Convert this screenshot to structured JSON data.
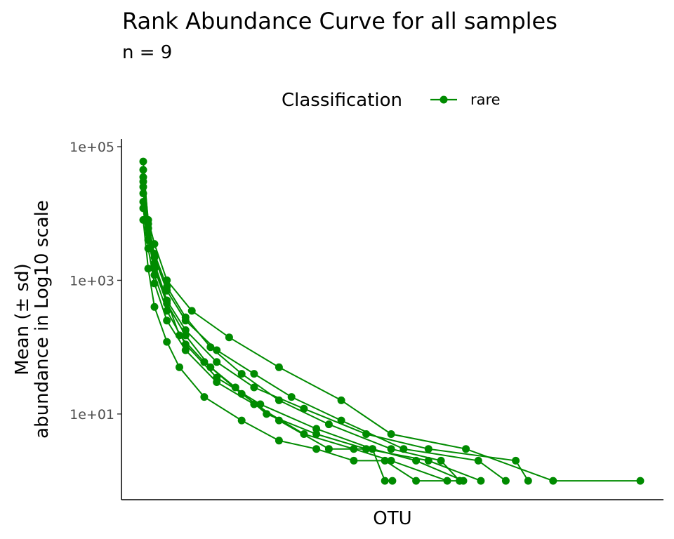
{
  "chart_data": {
    "type": "line",
    "title": "Rank Abundance Curve for all samples",
    "subtitle": "n =  9",
    "xlabel": "OTU",
    "ylabel_line1": "Mean (± sd)",
    "ylabel_line2": "abundance in Log10 scale",
    "y_scale": "log10",
    "ylim": [
      0.75,
      100000
    ],
    "y_ticks": [
      {
        "value": 100000,
        "label": "1e+05"
      },
      {
        "value": 1000,
        "label": "1e+03"
      },
      {
        "value": 10,
        "label": "1e+01"
      }
    ],
    "x_ticks_shown": false,
    "grid": false,
    "legend": {
      "position": "top",
      "title": "Classification",
      "entries": [
        {
          "label": "rare",
          "color": "#008b00"
        }
      ]
    },
    "series_color": "#008b00",
    "x_range": [
      1,
      400
    ],
    "series": [
      {
        "x": [
          1,
          5,
          10,
          20,
          35,
          55,
          80,
          110,
          150,
          185,
          195,
          201
        ],
        "values": [
          20000,
          5000,
          1500,
          450,
          150,
          50,
          20,
          8,
          3,
          3,
          1,
          1
        ]
      },
      {
        "x": [
          1,
          5,
          10,
          20,
          35,
          55,
          80,
          110,
          150,
          200,
          240,
          255
        ],
        "values": [
          60000,
          7000,
          2500,
          800,
          280,
          100,
          40,
          16,
          7,
          3,
          2,
          1
        ]
      },
      {
        "x": [
          1,
          5,
          10,
          20,
          35,
          60,
          90,
          120,
          160,
          210,
          270,
          292
        ],
        "values": [
          30000,
          6000,
          2200,
          700,
          250,
          90,
          40,
          18,
          8,
          3,
          2,
          1
        ]
      },
      {
        "x": [
          1,
          5,
          10,
          20,
          35,
          60,
          90,
          130,
          180,
          230,
          300,
          310
        ],
        "values": [
          15000,
          4000,
          1500,
          500,
          180,
          60,
          25,
          12,
          5,
          3,
          2,
          1
        ]
      },
      {
        "x": [
          1,
          5,
          10,
          20,
          40,
          70,
          110,
          160,
          200,
          260,
          330,
          400
        ],
        "values": [
          45000,
          8000,
          3500,
          1000,
          350,
          140,
          50,
          16,
          5,
          3,
          1,
          1
        ]
      },
      {
        "x": [
          1,
          5,
          10,
          20,
          35,
          60,
          90,
          130,
          170,
          200,
          245
        ],
        "values": [
          12000,
          3000,
          900,
          250,
          90,
          30,
          14,
          5,
          3,
          2,
          1
        ]
      },
      {
        "x": [
          1,
          5,
          10,
          20,
          30,
          50,
          80,
          110,
          140,
          170,
          195,
          220,
          255
        ],
        "values": [
          8000,
          1500,
          400,
          120,
          50,
          18,
          8,
          4,
          3,
          2,
          2,
          1,
          1
        ]
      },
      {
        "x": [
          1,
          5,
          10,
          20,
          35,
          60,
          95,
          140,
          185,
          220,
          258
        ],
        "values": [
          25000,
          5000,
          1200,
          350,
          110,
          35,
          14,
          6,
          3,
          2,
          1
        ]
      },
      {
        "x": [
          1,
          5,
          10,
          20,
          30,
          50,
          75,
          100,
          140,
          180,
          230,
          272
        ],
        "values": [
          35000,
          6000,
          1800,
          500,
          150,
          60,
          25,
          10,
          5,
          3,
          2,
          1
        ]
      }
    ]
  }
}
